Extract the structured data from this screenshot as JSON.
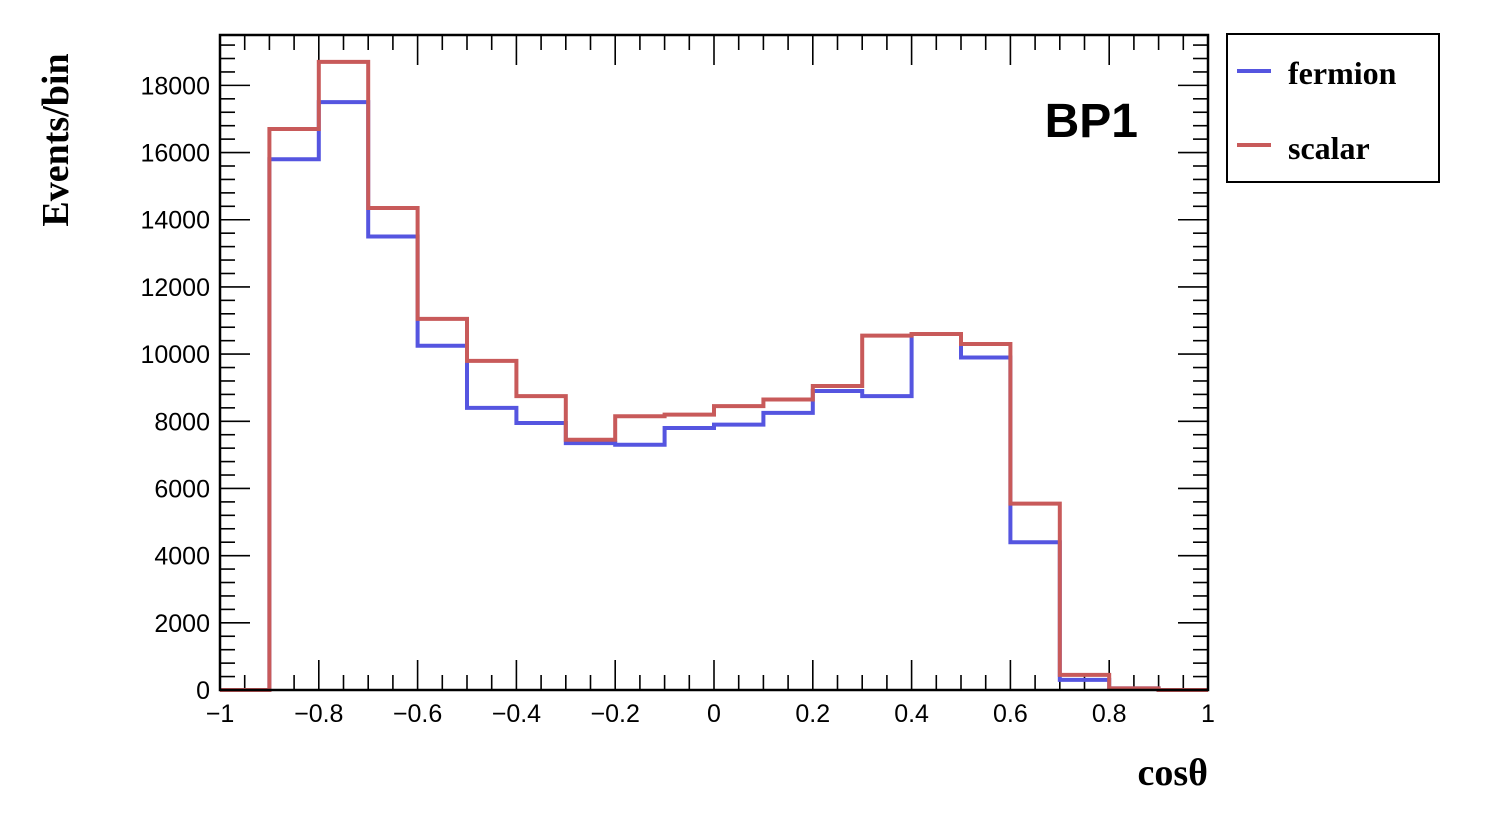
{
  "chart_data": {
    "type": "line",
    "style": "step-histogram",
    "xlabel": "cosθ",
    "ylabel": "Events/bin",
    "annotation": "BP1",
    "xlim": [
      -1,
      1
    ],
    "ylim": [
      0,
      19500
    ],
    "bin_edges": [
      -1,
      -0.9,
      -0.8,
      -0.7,
      -0.6,
      -0.5,
      -0.4,
      -0.3,
      -0.2,
      -0.1,
      0,
      0.1,
      0.2,
      0.3,
      0.4,
      0.5,
      0.6,
      0.7,
      0.8,
      0.9,
      1
    ],
    "x_ticks": [
      {
        "value": -1,
        "label": "−1"
      },
      {
        "value": -0.8,
        "label": "−0.8"
      },
      {
        "value": -0.6,
        "label": "−0.6"
      },
      {
        "value": -0.4,
        "label": "−0.4"
      },
      {
        "value": -0.2,
        "label": "−0.2"
      },
      {
        "value": 0,
        "label": "0"
      },
      {
        "value": 0.2,
        "label": "0.2"
      },
      {
        "value": 0.4,
        "label": "0.4"
      },
      {
        "value": 0.6,
        "label": "0.6"
      },
      {
        "value": 0.8,
        "label": "0.8"
      },
      {
        "value": 1,
        "label": "1"
      }
    ],
    "y_ticks": [
      {
        "value": 0,
        "label": "0"
      },
      {
        "value": 2000,
        "label": "2000"
      },
      {
        "value": 4000,
        "label": "4000"
      },
      {
        "value": 6000,
        "label": "6000"
      },
      {
        "value": 8000,
        "label": "8000"
      },
      {
        "value": 10000,
        "label": "10000"
      },
      {
        "value": 12000,
        "label": "12000"
      },
      {
        "value": 14000,
        "label": "14000"
      },
      {
        "value": 16000,
        "label": "16000"
      },
      {
        "value": 18000,
        "label": "18000"
      }
    ],
    "legend_position": "outside-top-right",
    "series": [
      {
        "name": "fermion",
        "color": "#5555e0",
        "values": [
          0,
          15800,
          17500,
          13500,
          10250,
          8400,
          7950,
          7350,
          7300,
          7800,
          7900,
          8250,
          8900,
          8750,
          10600,
          9900,
          4400,
          300,
          50,
          0
        ]
      },
      {
        "name": "scalar",
        "color": "#c85a5a",
        "values": [
          0,
          16700,
          18700,
          14350,
          11050,
          9800,
          8750,
          7450,
          8150,
          8200,
          8450,
          8650,
          9050,
          10550,
          10600,
          10300,
          5550,
          450,
          50,
          0
        ]
      }
    ]
  }
}
